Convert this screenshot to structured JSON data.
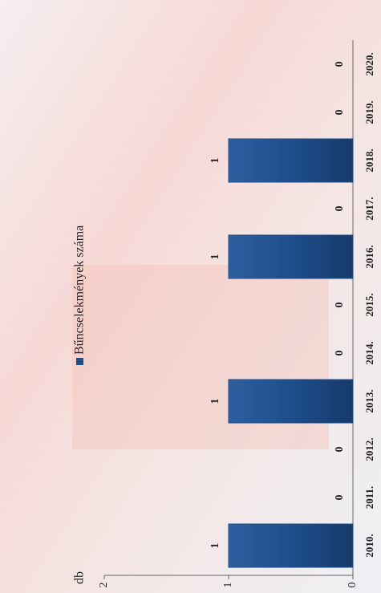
{
  "chart_data": {
    "type": "bar",
    "y_label": "db",
    "categories": [
      "2010.",
      "2011.",
      "2012.",
      "2013.",
      "2014.",
      "2015.",
      "2016.",
      "2017.",
      "2018.",
      "2019.",
      "2020."
    ],
    "series": [
      {
        "name": "Bűncselekmények száma",
        "color": "#1f4e8c",
        "values": [
          1,
          0,
          0,
          1,
          0,
          0,
          1,
          0,
          1,
          0,
          0
        ]
      }
    ],
    "ylim": [
      0,
      2
    ],
    "yticks": [
      0,
      1,
      2
    ]
  }
}
